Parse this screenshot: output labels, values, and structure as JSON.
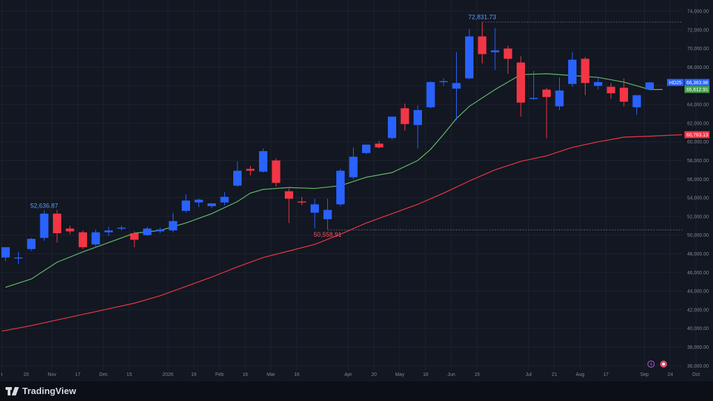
{
  "app": {
    "brand": "TradingView",
    "brand_icon": "tradingview-logo-icon"
  },
  "chart_data": {
    "type": "candlestick",
    "title": "",
    "xlabel": "",
    "ylabel": "",
    "ylim": [
      35500,
      75200
    ],
    "y_ticks": [
      36000,
      38000,
      40000,
      42000,
      44000,
      46000,
      48000,
      50000,
      52000,
      54000,
      56000,
      58000,
      60000,
      62000,
      64000,
      66000,
      68000,
      70000,
      72000,
      74000
    ],
    "y_tick_labels": [
      "36,000.00",
      "38,000.00",
      "40,000.00",
      "42,000.00",
      "44,000.00",
      "46,000.00",
      "48,000.00",
      "50,000.00",
      "52,000.00",
      "54,000.00",
      "56,000.00",
      "58,000.00",
      "60,000.00",
      "62,000.00",
      "64,000.00",
      "66,000.00",
      "68,000.00",
      "70,000.00",
      "72,000.00",
      "74,000.00"
    ],
    "x_ticks": [
      {
        "i": -0.3,
        "label": "t"
      },
      {
        "i": 1.6,
        "label": "20"
      },
      {
        "i": 3.6,
        "label": "Nov"
      },
      {
        "i": 5.6,
        "label": "17"
      },
      {
        "i": 7.6,
        "label": "Dec"
      },
      {
        "i": 9.6,
        "label": "15"
      },
      {
        "i": 12.6,
        "label": "2026"
      },
      {
        "i": 14.6,
        "label": "19"
      },
      {
        "i": 16.6,
        "label": "Feb"
      },
      {
        "i": 18.6,
        "label": "16"
      },
      {
        "i": 20.6,
        "label": "Mar"
      },
      {
        "i": 22.6,
        "label": "16"
      },
      {
        "i": 26.6,
        "label": "Apr"
      },
      {
        "i": 28.6,
        "label": "20"
      },
      {
        "i": 30.6,
        "label": "May"
      },
      {
        "i": 32.6,
        "label": "18"
      },
      {
        "i": 34.6,
        "label": "Jun"
      },
      {
        "i": 36.6,
        "label": "15"
      },
      {
        "i": 40.6,
        "label": "Jul"
      },
      {
        "i": 42.6,
        "label": "21"
      },
      {
        "i": 44.6,
        "label": "Aug"
      },
      {
        "i": 46.6,
        "label": "17"
      },
      {
        "i": 49.6,
        "label": "Sep"
      },
      {
        "i": 51.6,
        "label": "24"
      },
      {
        "i": 53.6,
        "label": "Oct"
      }
    ],
    "candles": [
      {
        "o": 47600,
        "h": 48400,
        "l": 47200,
        "c": 48700
      },
      {
        "o": 47500,
        "h": 48200,
        "l": 46900,
        "c": 47600
      },
      {
        "o": 48500,
        "h": 49700,
        "l": 48300,
        "c": 49600
      },
      {
        "o": 49700,
        "h": 52636.87,
        "l": 49400,
        "c": 52300
      },
      {
        "o": 52300,
        "h": 52700,
        "l": 49200,
        "c": 50200
      },
      {
        "o": 50700,
        "h": 51000,
        "l": 50100,
        "c": 50400
      },
      {
        "o": 50300,
        "h": 50500,
        "l": 48500,
        "c": 48700
      },
      {
        "o": 49000,
        "h": 50600,
        "l": 48800,
        "c": 50300
      },
      {
        "o": 50300,
        "h": 50900,
        "l": 49900,
        "c": 50500
      },
      {
        "o": 50700,
        "h": 51000,
        "l": 50500,
        "c": 50800
      },
      {
        "o": 50200,
        "h": 50400,
        "l": 48700,
        "c": 49500
      },
      {
        "o": 50000,
        "h": 50900,
        "l": 49900,
        "c": 50700
      },
      {
        "o": 50400,
        "h": 50800,
        "l": 50200,
        "c": 50600
      },
      {
        "o": 50500,
        "h": 52400,
        "l": 50300,
        "c": 51500
      },
      {
        "o": 52600,
        "h": 54400,
        "l": 52400,
        "c": 53700
      },
      {
        "o": 53500,
        "h": 53900,
        "l": 53000,
        "c": 53800
      },
      {
        "o": 53100,
        "h": 53400,
        "l": 52900,
        "c": 53400
      },
      {
        "o": 53500,
        "h": 54600,
        "l": 53200,
        "c": 54100
      },
      {
        "o": 55300,
        "h": 57900,
        "l": 55200,
        "c": 56900
      },
      {
        "o": 57100,
        "h": 57400,
        "l": 56400,
        "c": 56900
      },
      {
        "o": 56800,
        "h": 59300,
        "l": 56700,
        "c": 59000
      },
      {
        "o": 58000,
        "h": 58200,
        "l": 55200,
        "c": 55600
      },
      {
        "o": 54700,
        "h": 55000,
        "l": 51300,
        "c": 53900
      },
      {
        "o": 53600,
        "h": 54100,
        "l": 53200,
        "c": 53500
      },
      {
        "o": 52400,
        "h": 53900,
        "l": 50700,
        "c": 53300
      },
      {
        "o": 51700,
        "h": 53900,
        "l": 50558.91,
        "c": 52700
      },
      {
        "o": 53300,
        "h": 57100,
        "l": 53100,
        "c": 56900
      },
      {
        "o": 56200,
        "h": 59400,
        "l": 56000,
        "c": 58400
      },
      {
        "o": 58800,
        "h": 59700,
        "l": 58700,
        "c": 59700
      },
      {
        "o": 59800,
        "h": 60100,
        "l": 59300,
        "c": 59400
      },
      {
        "o": 60400,
        "h": 62700,
        "l": 60200,
        "c": 62700
      },
      {
        "o": 63600,
        "h": 64100,
        "l": 61200,
        "c": 61900
      },
      {
        "o": 61800,
        "h": 63900,
        "l": 59300,
        "c": 63400
      },
      {
        "o": 63700,
        "h": 66500,
        "l": 63600,
        "c": 66400
      },
      {
        "o": 66400,
        "h": 66800,
        "l": 66000,
        "c": 66500
      },
      {
        "o": 65700,
        "h": 69600,
        "l": 62300,
        "c": 66300
      },
      {
        "o": 66800,
        "h": 72100,
        "l": 66700,
        "c": 71300
      },
      {
        "o": 71300,
        "h": 72831.73,
        "l": 68400,
        "c": 69400
      },
      {
        "o": 69600,
        "h": 72200,
        "l": 67700,
        "c": 69800
      },
      {
        "o": 70000,
        "h": 70300,
        "l": 67300,
        "c": 68900
      },
      {
        "o": 68500,
        "h": 69200,
        "l": 62700,
        "c": 64200
      },
      {
        "o": 64700,
        "h": 67600,
        "l": 64500,
        "c": 64700
      },
      {
        "o": 65600,
        "h": 65800,
        "l": 60400,
        "c": 64800
      },
      {
        "o": 63800,
        "h": 66900,
        "l": 63400,
        "c": 65500
      },
      {
        "o": 66200,
        "h": 69600,
        "l": 65900,
        "c": 68800
      },
      {
        "o": 68900,
        "h": 69100,
        "l": 65000,
        "c": 66300
      },
      {
        "o": 66000,
        "h": 66900,
        "l": 65600,
        "c": 66400
      },
      {
        "o": 65900,
        "h": 66300,
        "l": 64600,
        "c": 65200
      },
      {
        "o": 65800,
        "h": 66800,
        "l": 63800,
        "c": 64300
      },
      {
        "o": 63700,
        "h": 64900,
        "l": 62900,
        "c": 65000
      },
      {
        "o": 65600,
        "h": 66400,
        "l": 65500,
        "c": 66363.98
      }
    ],
    "ma_fast": {
      "color": "#66bb6a",
      "points": [
        [
          0,
          44400
        ],
        [
          2,
          45300
        ],
        [
          4,
          47100
        ],
        [
          6,
          48200
        ],
        [
          8,
          49200
        ],
        [
          10,
          50200
        ],
        [
          12,
          50500
        ],
        [
          14,
          51300
        ],
        [
          16,
          52300
        ],
        [
          18,
          53600
        ],
        [
          19,
          54500
        ],
        [
          20,
          54900
        ],
        [
          22,
          55100
        ],
        [
          24,
          55000
        ],
        [
          26,
          55300
        ],
        [
          28,
          56200
        ],
        [
          30,
          56700
        ],
        [
          32,
          58000
        ],
        [
          33,
          59200
        ],
        [
          34,
          60800
        ],
        [
          35,
          62500
        ],
        [
          36,
          63800
        ],
        [
          38,
          65600
        ],
        [
          39,
          66400
        ],
        [
          40,
          67200
        ],
        [
          42,
          67300
        ],
        [
          44,
          67100
        ],
        [
          46,
          66900
        ],
        [
          48,
          66400
        ],
        [
          50,
          65600
        ],
        [
          51,
          65612.91
        ]
      ]
    },
    "ma_slow": {
      "color": "#f23645",
      "points": [
        [
          -0.3,
          39700
        ],
        [
          2,
          40300
        ],
        [
          4,
          40900
        ],
        [
          6,
          41500
        ],
        [
          8,
          42100
        ],
        [
          10,
          42700
        ],
        [
          12,
          43500
        ],
        [
          14,
          44500
        ],
        [
          16,
          45500
        ],
        [
          18,
          46600
        ],
        [
          20,
          47600
        ],
        [
          22,
          48300
        ],
        [
          24,
          49000
        ],
        [
          26,
          50100
        ],
        [
          28,
          51300
        ],
        [
          30,
          52300
        ],
        [
          32,
          53300
        ],
        [
          34,
          54500
        ],
        [
          36,
          55800
        ],
        [
          38,
          57000
        ],
        [
          40,
          57900
        ],
        [
          42,
          58500
        ],
        [
          44,
          59400
        ],
        [
          46,
          60000
        ],
        [
          48,
          60500
        ],
        [
          50,
          60600
        ],
        [
          52.5,
          60763.13
        ]
      ]
    },
    "annotations": [
      {
        "label": "72,831.73",
        "value": 72831.73,
        "index": 37,
        "position": "above",
        "color": "#5b9cf6"
      },
      {
        "label": "52,636.87",
        "value": 52636.87,
        "index": 3,
        "position": "above",
        "color": "#5b9cf6"
      },
      {
        "label": "50,558.91",
        "value": 50558.91,
        "index": 25,
        "position": "below",
        "color": "#f7525f"
      }
    ],
    "price_tags": [
      {
        "name": "HD25",
        "label": "66,363.98",
        "value": 66363.98,
        "color": "#2962ff"
      },
      {
        "label": "65,612.91",
        "value": 65612.91,
        "color": "#43a047"
      },
      {
        "label": "60,763.13",
        "value": 60763.13,
        "color": "#f23645"
      }
    ],
    "colors": {
      "up": "#2962ff",
      "down": "#f23645",
      "background": "#121722",
      "grid": "#1c2230"
    },
    "icons": [
      "lightning-icon",
      "record-icon"
    ]
  }
}
